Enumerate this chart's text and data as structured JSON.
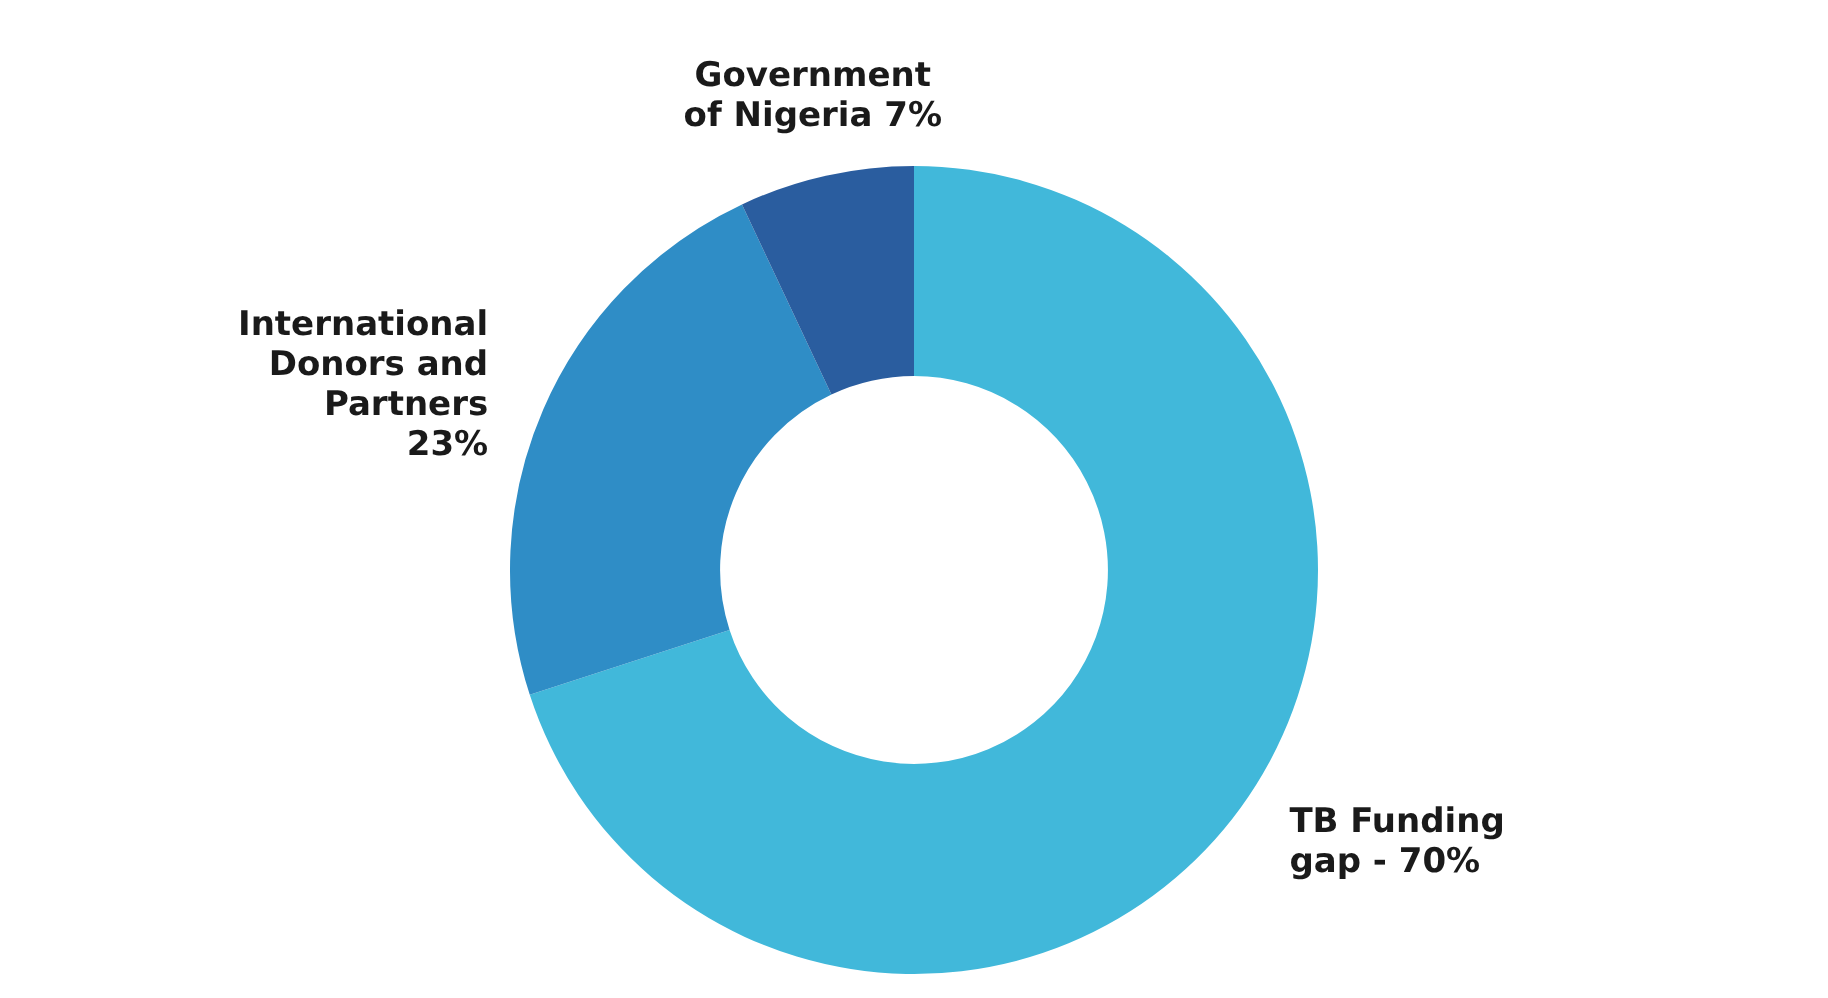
{
  "chart_data": {
    "type": "donut",
    "categories": [
      "TB Funding gap -",
      "International Donors and Partners",
      "Government of Nigeria"
    ],
    "values": [
      70,
      23,
      7
    ],
    "colors": [
      "#41b8da",
      "#2f8dc6",
      "#2a5d9f"
    ],
    "value_labels": [
      "70%",
      "23%",
      "7%"
    ],
    "legend": false
  }
}
